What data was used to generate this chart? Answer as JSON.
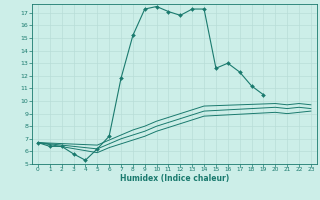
{
  "xlabel": "Humidex (Indice chaleur)",
  "bg_color": "#cceee8",
  "grid_color": "#b8ddd8",
  "line_color": "#1a7a6e",
  "xlim": [
    -0.5,
    23.5
  ],
  "ylim": [
    5,
    17.7
  ],
  "yticks": [
    5,
    6,
    7,
    8,
    9,
    10,
    11,
    12,
    13,
    14,
    15,
    16,
    17
  ],
  "xticks": [
    0,
    1,
    2,
    3,
    4,
    5,
    6,
    7,
    8,
    9,
    10,
    11,
    12,
    13,
    14,
    15,
    16,
    17,
    18,
    19,
    20,
    21,
    22,
    23
  ],
  "line1_x": [
    0,
    1,
    2,
    3,
    4,
    5,
    6,
    7,
    8,
    9,
    10,
    11,
    12,
    13,
    14,
    15,
    16,
    17,
    18,
    19
  ],
  "line1_y": [
    6.7,
    6.4,
    6.4,
    5.8,
    5.3,
    6.2,
    7.2,
    11.8,
    15.2,
    17.3,
    17.5,
    17.1,
    16.8,
    17.3,
    17.3,
    12.6,
    13.0,
    12.3,
    11.2,
    10.5
  ],
  "line2_x": [
    0,
    5,
    6,
    7,
    8,
    9,
    10,
    11,
    12,
    13,
    14,
    20,
    21,
    22,
    23
  ],
  "line2_y": [
    6.7,
    6.5,
    6.9,
    7.3,
    7.7,
    8.0,
    8.4,
    8.7,
    9.0,
    9.3,
    9.6,
    9.8,
    9.7,
    9.8,
    9.7
  ],
  "line3_x": [
    0,
    5,
    6,
    7,
    8,
    9,
    10,
    11,
    12,
    13,
    14,
    20,
    21,
    22,
    23
  ],
  "line3_y": [
    6.7,
    6.2,
    6.6,
    7.0,
    7.3,
    7.6,
    8.0,
    8.3,
    8.6,
    8.9,
    9.2,
    9.5,
    9.4,
    9.5,
    9.4
  ],
  "line4_x": [
    0,
    5,
    6,
    7,
    8,
    9,
    10,
    11,
    12,
    13,
    14,
    20,
    21,
    22,
    23
  ],
  "line4_y": [
    6.7,
    5.9,
    6.3,
    6.6,
    6.9,
    7.2,
    7.6,
    7.9,
    8.2,
    8.5,
    8.8,
    9.1,
    9.0,
    9.1,
    9.2
  ]
}
